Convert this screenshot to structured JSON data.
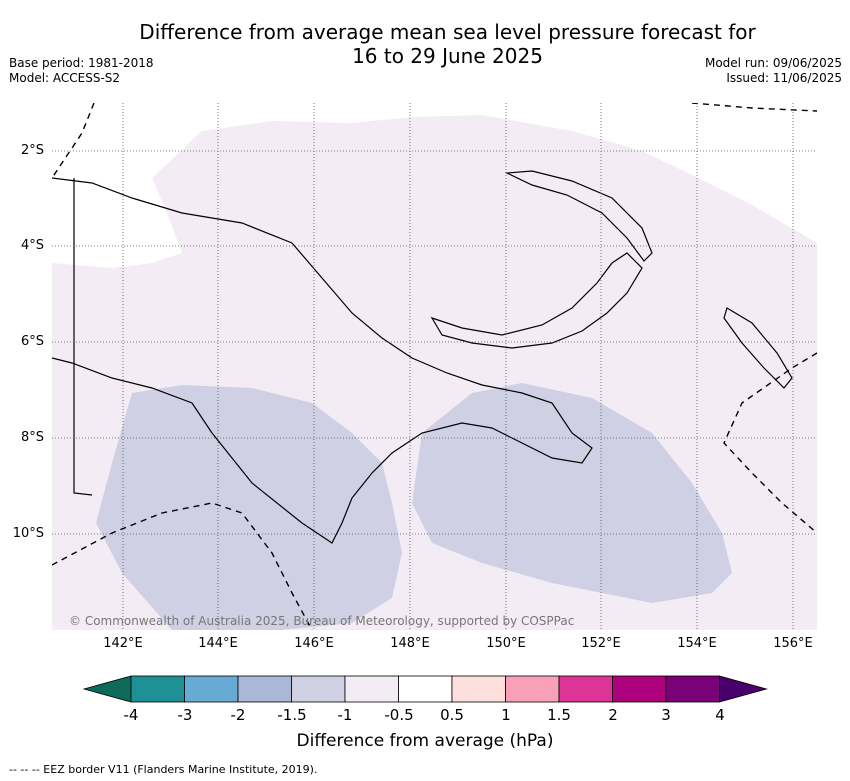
{
  "title": {
    "line1": "Difference from average mean sea level pressure forecast for",
    "line2": "16 to 29 June 2025"
  },
  "meta_left": {
    "base_period": "Base period: 1981-2018",
    "model": "Model: ACCESS-S2"
  },
  "meta_right": {
    "model_run": "Model run: 09/06/2025",
    "issued": "Issued: 11/06/2025"
  },
  "axes": {
    "lat_ticks": [
      "2°S",
      "4°S",
      "6°S",
      "8°S",
      "10°S"
    ],
    "lon_ticks": [
      "142°E",
      "144°E",
      "146°E",
      "148°E",
      "150°E",
      "152°E",
      "154°E",
      "156°E"
    ]
  },
  "copyright": "© Commonwealth of Australia 2025, Bureau of Meteorology, supported by COSPPac",
  "legend": {
    "title": "Difference from average (hPa)",
    "labels": [
      "-4",
      "-3",
      "-2",
      "-1.5",
      "-1",
      "-0.5",
      "0.5",
      "1",
      "1.5",
      "2",
      "3",
      "4"
    ],
    "colors": [
      "#0d6b5b",
      "#1f9096",
      "#67aad3",
      "#a8b8d6",
      "#cfd0e4",
      "#f4ecf4",
      "#ffffff",
      "#fde0de",
      "#f7a0b8",
      "#dd3497",
      "#ae017e",
      "#7a0177",
      "#49006a"
    ]
  },
  "footer": "--  --  -- EEZ border V11 (Flanders Marine Institute, 2019)."
}
